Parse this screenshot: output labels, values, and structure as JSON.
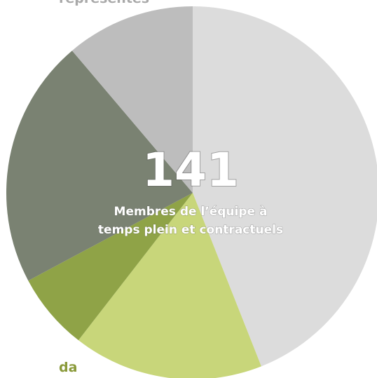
{
  "header_fragment": "représentés",
  "footer_fragment": "da",
  "chart_data": {
    "type": "pie",
    "values": [
      44,
      16.5,
      6.7,
      21.6,
      11.2
    ],
    "colors": [
      "#dcdcdc",
      "#c8d67a",
      "#8fa347",
      "#7a8272",
      "#bdbdbd"
    ],
    "start_angle": 0,
    "direction": "clockwise",
    "center_value": 141,
    "center_label": [
      "Membres de l’équipe à",
      "temps plein et contractuels"
    ]
  }
}
